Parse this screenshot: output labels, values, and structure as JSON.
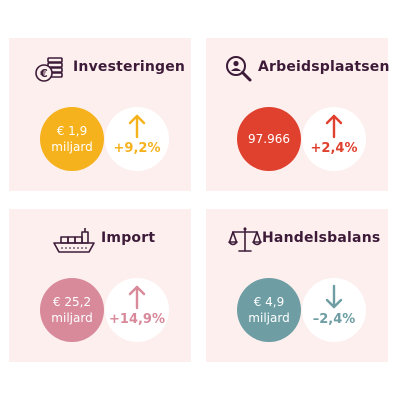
{
  "colors": {
    "card_bg": "#fcefee",
    "title": "#3d1b38",
    "investeringen": "#f5b21d",
    "arbeidsplaatsen": "#e0412f",
    "import": "#d8899a",
    "handelsbalans": "#6e9ea4"
  },
  "cards": {
    "investeringen": {
      "icon": "coins-euro-icon",
      "title": "Investeringen",
      "value": "€ 1,9\nmiljard",
      "direction": "up",
      "change": "+9,2%"
    },
    "arbeidsplaatsen": {
      "icon": "magnifier-person-icon",
      "title": "Arbeidsplaatsen",
      "value": "97.966",
      "direction": "up",
      "change": "+2,4%"
    },
    "import": {
      "icon": "container-ship-icon",
      "title": "Import",
      "value": "€ 25,2\nmiljard",
      "direction": "up",
      "change": "+14,9%"
    },
    "handelsbalans": {
      "icon": "balance-scale-icon",
      "title": "Handelsbalans",
      "value": "€ 4,9\nmiljard",
      "direction": "down",
      "change": "–2,4%"
    }
  }
}
